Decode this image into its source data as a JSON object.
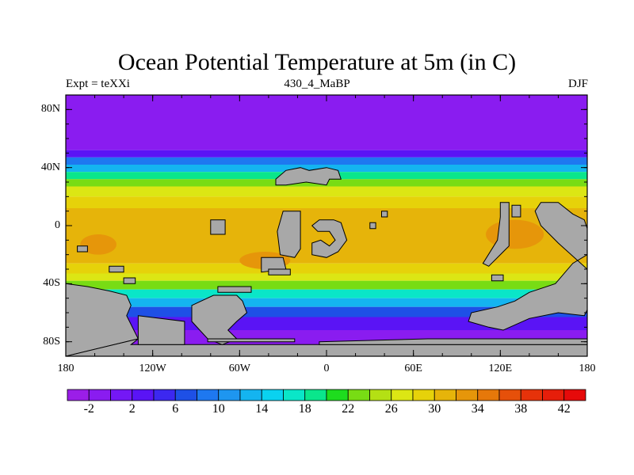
{
  "chart_data": {
    "type": "heatmap",
    "title": "Ocean Potential Temperature at 5m (in C)",
    "left_label": "Expt = teXXi",
    "center_label": "430_4_MaBP",
    "right_label": "DJF",
    "lat_ticks": [
      {
        "value": 80,
        "label": "80N"
      },
      {
        "value": 40,
        "label": "40N"
      },
      {
        "value": 0,
        "label": "0"
      },
      {
        "value": -40,
        "label": "40S"
      },
      {
        "value": -80,
        "label": "80S"
      }
    ],
    "lon_ticks": [
      {
        "value": -180,
        "label": "180"
      },
      {
        "value": -120,
        "label": "120W"
      },
      {
        "value": -60,
        "label": "60W"
      },
      {
        "value": 0,
        "label": "0"
      },
      {
        "value": 60,
        "label": "60E"
      },
      {
        "value": 120,
        "label": "120E"
      },
      {
        "value": 180,
        "label": "180"
      }
    ],
    "lon_range": [
      -180,
      180
    ],
    "lat_range": [
      -90,
      90
    ],
    "colorbar": {
      "min": -4,
      "max": 44,
      "step": 2,
      "labels": [
        -2,
        2,
        6,
        10,
        14,
        18,
        22,
        26,
        30,
        34,
        38,
        42
      ],
      "colors": [
        "#9b1ee8",
        "#8a1cf0",
        "#7418f5",
        "#5a14f5",
        "#3c28f0",
        "#1e50e6",
        "#1e78f0",
        "#1e96f0",
        "#14b4f0",
        "#0ad2f0",
        "#0ae6c8",
        "#0ae68c",
        "#1edc1e",
        "#78dc14",
        "#b4e014",
        "#dce614",
        "#e6d20a",
        "#e6b40a",
        "#e6960a",
        "#e6780a",
        "#e6500a",
        "#e6320a",
        "#e61e0a",
        "#e60a0a"
      ]
    },
    "lat_bands": [
      {
        "lat_min": 52,
        "lat_max": 90,
        "value": -2
      },
      {
        "lat_min": 47,
        "lat_max": 52,
        "value": 2
      },
      {
        "lat_min": 42,
        "lat_max": 47,
        "value": 8
      },
      {
        "lat_min": 37,
        "lat_max": 42,
        "value": 13
      },
      {
        "lat_min": 32,
        "lat_max": 37,
        "value": 18
      },
      {
        "lat_min": 27,
        "lat_max": 32,
        "value": 22
      },
      {
        "lat_min": 20,
        "lat_max": 27,
        "value": 26
      },
      {
        "lat_min": 12,
        "lat_max": 20,
        "value": 29
      },
      {
        "lat_min": -26,
        "lat_max": 12,
        "value": 31
      },
      {
        "lat_min": -33,
        "lat_max": -26,
        "value": 29
      },
      {
        "lat_min": -38,
        "lat_max": -33,
        "value": 26
      },
      {
        "lat_min": -44,
        "lat_max": -38,
        "value": 22
      },
      {
        "lat_min": -50,
        "lat_max": -44,
        "value": 17
      },
      {
        "lat_min": -56,
        "lat_max": -50,
        "value": 12
      },
      {
        "lat_min": -63,
        "lat_max": -56,
        "value": 7
      },
      {
        "lat_min": -72,
        "lat_max": -63,
        "value": 2
      },
      {
        "lat_min": -90,
        "lat_max": -72,
        "value": -1
      }
    ],
    "warm_pools": [
      {
        "lon_min": -170,
        "lon_max": -145,
        "lat_min": -20,
        "lat_max": -6,
        "value": 33
      },
      {
        "lon_min": 110,
        "lon_max": 150,
        "lat_min": -16,
        "lat_max": 4,
        "value": 33
      },
      {
        "lon_min": -60,
        "lon_max": -25,
        "lat_min": -30,
        "lat_max": -18,
        "value": 33
      }
    ],
    "land": [
      [
        [
          -180,
          -40
        ],
        [
          -165,
          -42
        ],
        [
          -150,
          -45
        ],
        [
          -138,
          -48
        ],
        [
          -135,
          -55
        ],
        [
          -138,
          -62
        ],
        [
          -130,
          -78
        ],
        [
          -180,
          -90
        ]
      ],
      [
        [
          -180,
          -90
        ],
        [
          -130,
          -78
        ],
        [
          -135,
          -82
        ],
        [
          180,
          -82
        ],
        [
          180,
          -90
        ]
      ],
      [
        [
          -130,
          -62
        ],
        [
          -98,
          -66
        ],
        [
          -98,
          -82
        ],
        [
          -130,
          -82
        ]
      ],
      [
        [
          -93,
          -55
        ],
        [
          -78,
          -48
        ],
        [
          -62,
          -48
        ],
        [
          -58,
          -52
        ],
        [
          -55,
          -60
        ],
        [
          -62,
          -66
        ],
        [
          -68,
          -72
        ],
        [
          -62,
          -78
        ],
        [
          -72,
          -82
        ],
        [
          -82,
          -78
        ],
        [
          -93,
          -66
        ]
      ],
      [
        [
          -82,
          -78
        ],
        [
          -22,
          -78
        ],
        [
          -22,
          -80
        ],
        [
          -82,
          -80
        ]
      ],
      [
        [
          -5,
          -80
        ],
        [
          70,
          -78
        ],
        [
          180,
          -78
        ],
        [
          180,
          -82
        ],
        [
          -5,
          -82
        ]
      ],
      [
        [
          -75,
          -46
        ],
        [
          -52,
          -46
        ],
        [
          -52,
          -42
        ],
        [
          -75,
          -42
        ]
      ],
      [
        [
          -35,
          32
        ],
        [
          -28,
          38
        ],
        [
          -18,
          40
        ],
        [
          -12,
          38
        ],
        [
          0,
          40
        ],
        [
          8,
          38
        ],
        [
          10,
          32
        ],
        [
          2,
          32
        ],
        [
          0,
          28
        ],
        [
          -14,
          30
        ],
        [
          -28,
          28
        ],
        [
          -35,
          28
        ]
      ],
      [
        [
          -30,
          10
        ],
        [
          -18,
          10
        ],
        [
          -18,
          -16
        ],
        [
          -22,
          -22
        ],
        [
          -32,
          -20
        ],
        [
          -34,
          -4
        ]
      ],
      [
        [
          -10,
          0
        ],
        [
          -5,
          4
        ],
        [
          5,
          4
        ],
        [
          10,
          2
        ],
        [
          14,
          -10
        ],
        [
          8,
          -18
        ],
        [
          0,
          -22
        ],
        [
          -10,
          -20
        ],
        [
          -10,
          -12
        ],
        [
          -4,
          -10
        ],
        [
          2,
          -14
        ],
        [
          6,
          -10
        ],
        [
          2,
          -4
        ],
        [
          -6,
          -4
        ]
      ],
      [
        [
          -45,
          -22
        ],
        [
          -30,
          -22
        ],
        [
          -28,
          -30
        ],
        [
          -45,
          -32
        ]
      ],
      [
        [
          -40,
          -30
        ],
        [
          -25,
          -30
        ],
        [
          -25,
          -34
        ],
        [
          -40,
          -34
        ]
      ],
      [
        [
          -150,
          -28
        ],
        [
          -140,
          -28
        ],
        [
          -140,
          -32
        ],
        [
          -150,
          -32
        ]
      ],
      [
        [
          -140,
          -36
        ],
        [
          -132,
          -36
        ],
        [
          -132,
          -40
        ],
        [
          -140,
          -40
        ]
      ],
      [
        [
          -172,
          -14
        ],
        [
          -165,
          -14
        ],
        [
          -165,
          -18
        ],
        [
          -172,
          -18
        ]
      ],
      [
        [
          -80,
          4
        ],
        [
          -70,
          4
        ],
        [
          -70,
          -6
        ],
        [
          -80,
          -6
        ]
      ],
      [
        [
          38,
          10
        ],
        [
          42,
          10
        ],
        [
          42,
          6
        ],
        [
          38,
          6
        ]
      ],
      [
        [
          30,
          2
        ],
        [
          34,
          2
        ],
        [
          34,
          -2
        ],
        [
          30,
          -2
        ]
      ],
      [
        [
          120,
          16
        ],
        [
          126,
          16
        ],
        [
          126,
          -14
        ],
        [
          112,
          -28
        ],
        [
          108,
          -26
        ],
        [
          118,
          -10
        ],
        [
          120,
          6
        ]
      ],
      [
        [
          128,
          14
        ],
        [
          134,
          14
        ],
        [
          134,
          6
        ],
        [
          128,
          6
        ]
      ],
      [
        [
          114,
          -34
        ],
        [
          122,
          -34
        ],
        [
          122,
          -38
        ],
        [
          114,
          -38
        ]
      ],
      [
        [
          148,
          16
        ],
        [
          160,
          16
        ],
        [
          170,
          8
        ],
        [
          178,
          4
        ],
        [
          180,
          -2
        ],
        [
          180,
          -20
        ],
        [
          170,
          -26
        ],
        [
          158,
          -40
        ],
        [
          140,
          -46
        ],
        [
          130,
          -52
        ],
        [
          118,
          -56
        ],
        [
          100,
          -60
        ],
        [
          98,
          -66
        ],
        [
          112,
          -70
        ],
        [
          122,
          -72
        ],
        [
          140,
          -64
        ],
        [
          160,
          -60
        ],
        [
          178,
          -62
        ],
        [
          180,
          -58
        ],
        [
          180,
          -30
        ],
        [
          160,
          -12
        ],
        [
          148,
          0
        ],
        [
          144,
          10
        ]
      ]
    ]
  }
}
